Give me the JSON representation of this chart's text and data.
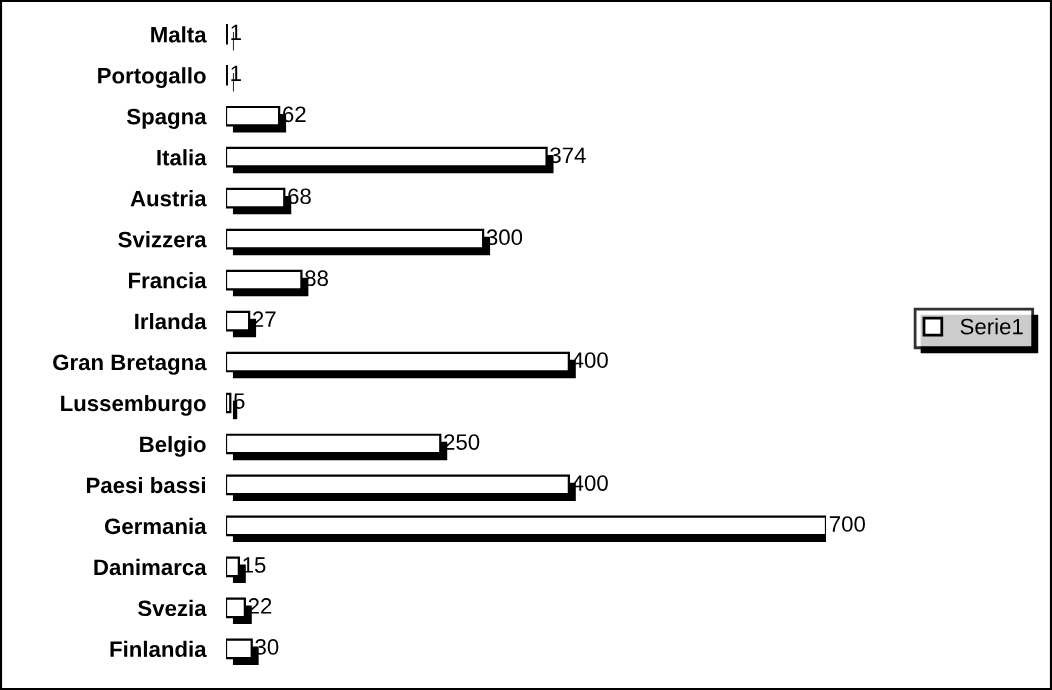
{
  "chart_data": {
    "type": "bar",
    "orientation": "horizontal",
    "categories": [
      "Malta",
      "Portogallo",
      "Spagna",
      "Italia",
      "Austria",
      "Svizzera",
      "Francia",
      "Irlanda",
      "Gran Bretagna",
      "Lussemburgo",
      "Belgio",
      "Paesi bassi",
      "Germania",
      "Danimarca",
      "Svezia",
      "Finlandia"
    ],
    "series": [
      {
        "name": "Serie1",
        "color": "#ffffff",
        "values": [
          1,
          1,
          62,
          374,
          68,
          300,
          88,
          27,
          400,
          5,
          250,
          400,
          700,
          15,
          22,
          30
        ]
      }
    ],
    "data_labels": true,
    "legend": "right",
    "grid": false
  }
}
